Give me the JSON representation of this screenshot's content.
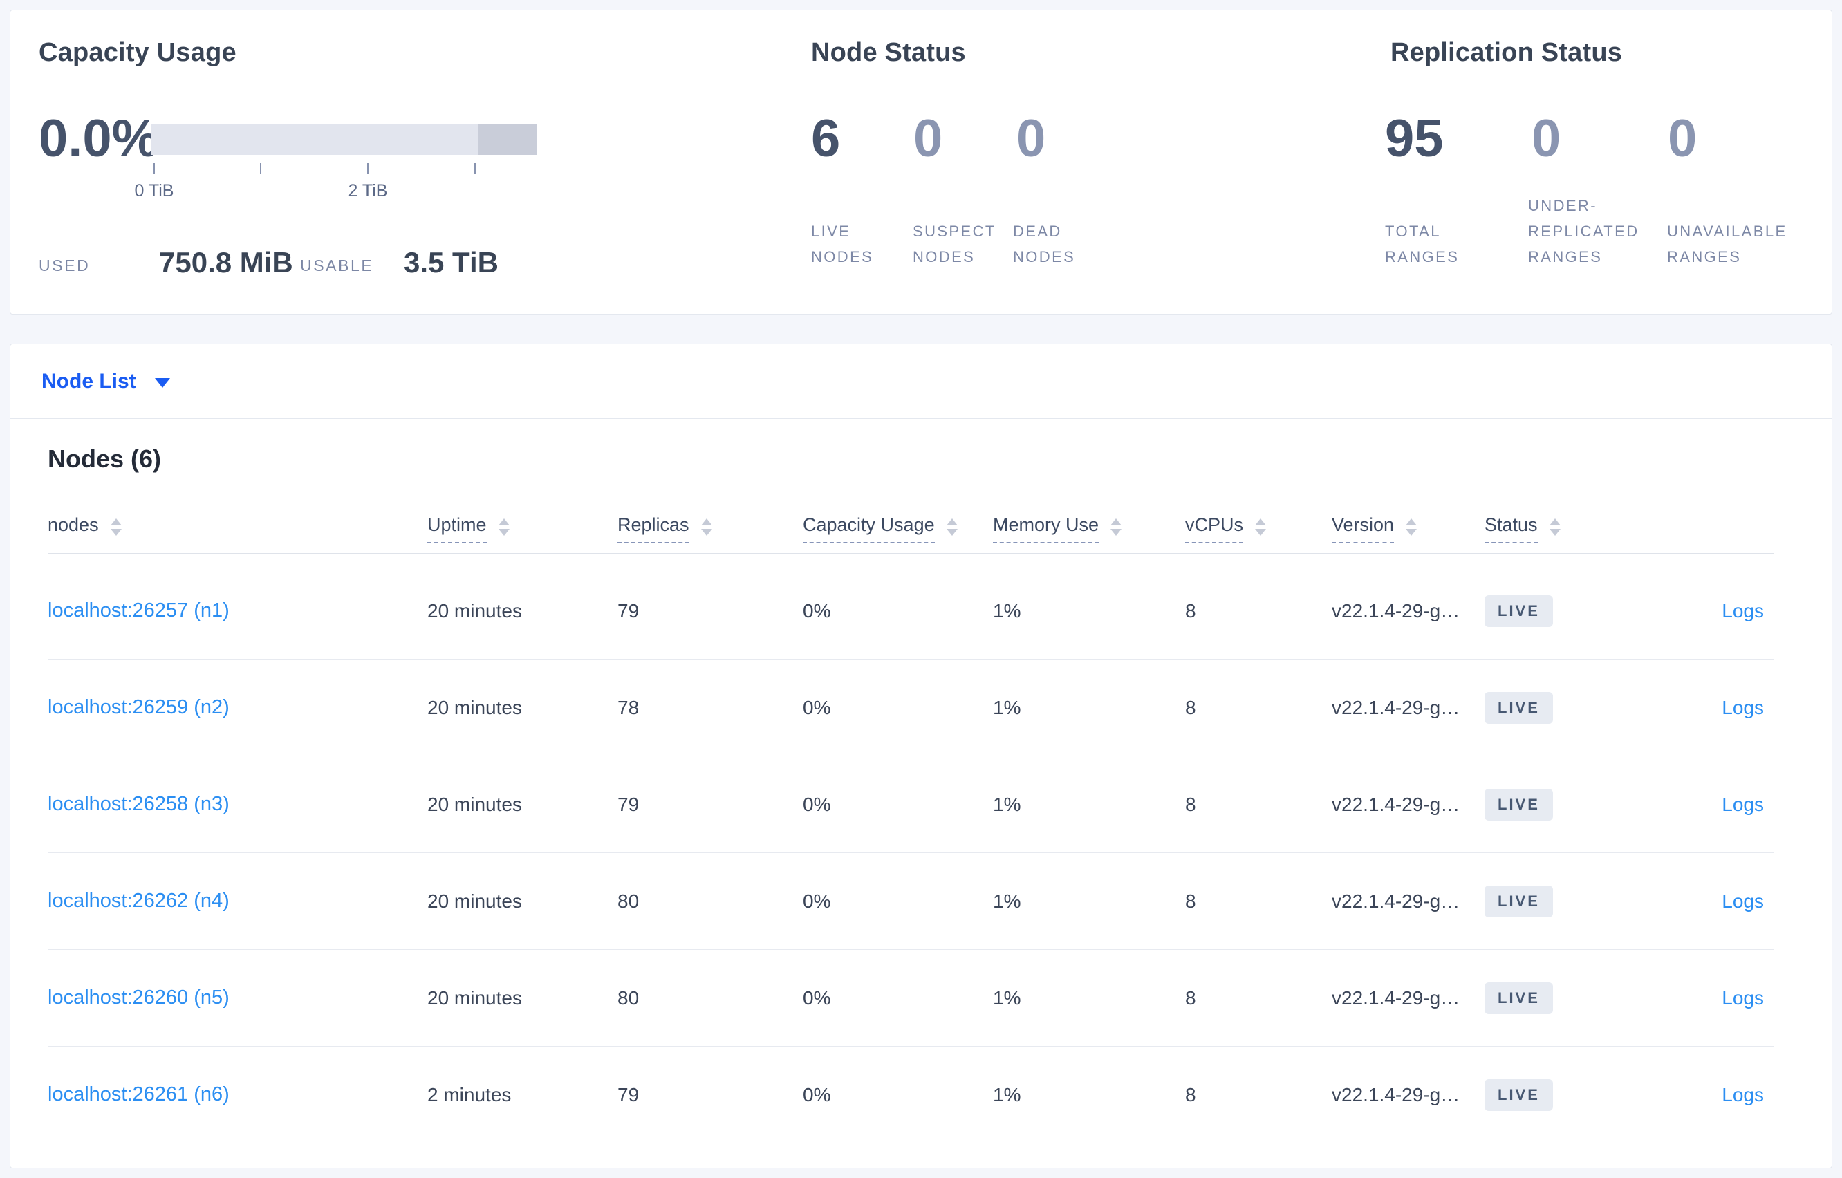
{
  "summary": {
    "capacity": {
      "title": "Capacity Usage",
      "percent": "0.0%",
      "used_label": "USED",
      "used_value": "750.8 MiB",
      "usable_label": "USABLE",
      "usable_value": "3.5 TiB",
      "axis_tick_labels": [
        "0 TiB",
        "2 TiB"
      ],
      "bar": {
        "track_color": "#e2e5ee",
        "segment_color": "#c9cdd9",
        "segment_width_pct": 15
      }
    },
    "node_status": {
      "title": "Node Status",
      "metrics": [
        {
          "value": "6",
          "label": "LIVE NODES"
        },
        {
          "value": "0",
          "label": "SUSPECT NODES"
        },
        {
          "value": "0",
          "label": "DEAD NODES"
        }
      ]
    },
    "replication_status": {
      "title": "Replication Status",
      "metrics": [
        {
          "value": "95",
          "label": "TOTAL RANGES"
        },
        {
          "value": "0",
          "label": "UNDER-REPLICATED RANGES"
        },
        {
          "value": "0",
          "label": "UNAVAILABLE RANGES"
        }
      ]
    }
  },
  "view_selector": {
    "label": "Node List"
  },
  "nodes_section": {
    "title": "Nodes (6)",
    "columns": {
      "nodes": "nodes",
      "uptime": "Uptime",
      "replicas": "Replicas",
      "capacity": "Capacity Usage",
      "memory": "Memory Use",
      "vcpus": "vCPUs",
      "version": "Version",
      "status": "Status"
    },
    "rows": [
      {
        "node": "localhost:26257 (n1)",
        "uptime": "20 minutes",
        "replicas": "79",
        "capacity": "0%",
        "memory": "1%",
        "vcpus": "8",
        "version": "v22.1.4-29-g…",
        "status": "LIVE",
        "logs": "Logs"
      },
      {
        "node": "localhost:26259 (n2)",
        "uptime": "20 minutes",
        "replicas": "78",
        "capacity": "0%",
        "memory": "1%",
        "vcpus": "8",
        "version": "v22.1.4-29-g…",
        "status": "LIVE",
        "logs": "Logs"
      },
      {
        "node": "localhost:26258 (n3)",
        "uptime": "20 minutes",
        "replicas": "79",
        "capacity": "0%",
        "memory": "1%",
        "vcpus": "8",
        "version": "v22.1.4-29-g…",
        "status": "LIVE",
        "logs": "Logs"
      },
      {
        "node": "localhost:26262 (n4)",
        "uptime": "20 minutes",
        "replicas": "80",
        "capacity": "0%",
        "memory": "1%",
        "vcpus": "8",
        "version": "v22.1.4-29-g…",
        "status": "LIVE",
        "logs": "Logs"
      },
      {
        "node": "localhost:26260 (n5)",
        "uptime": "20 minutes",
        "replicas": "80",
        "capacity": "0%",
        "memory": "1%",
        "vcpus": "8",
        "version": "v22.1.4-29-g…",
        "status": "LIVE",
        "logs": "Logs"
      },
      {
        "node": "localhost:26261 (n6)",
        "uptime": "2 minutes",
        "replicas": "79",
        "capacity": "0%",
        "memory": "1%",
        "vcpus": "8",
        "version": "v22.1.4-29-g…",
        "status": "LIVE",
        "logs": "Logs"
      }
    ]
  },
  "colors": {
    "page_background": "#f4f6fb",
    "panel_border": "#e4e8ef",
    "heading_text": "#394455",
    "muted_metric": "#8a95b1",
    "metric_label": "#7d88a6",
    "selector_blue": "#1a5cf2",
    "link_blue": "#2b8ef2",
    "badge_background": "#e7ebf2",
    "badge_text": "#475872"
  }
}
